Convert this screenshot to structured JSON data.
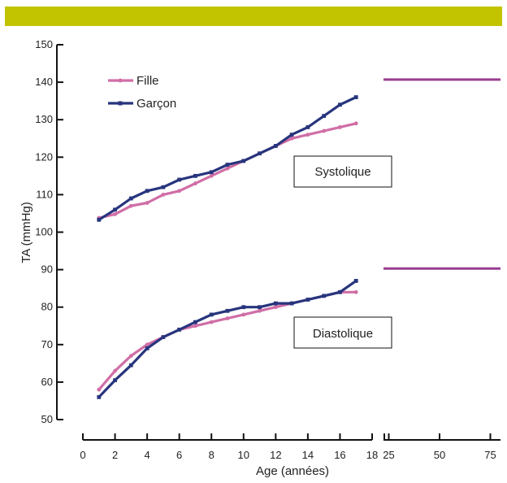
{
  "colors": {
    "top_bar": "#c2c400",
    "fille": "#d06ea6",
    "garcon": "#27357d",
    "reference_line": "#9a3d91",
    "axis": "#111111"
  },
  "chart_data": {
    "type": "line",
    "xlabel": "Age (années)",
    "ylabel": "TA (mmHg)",
    "ylim": [
      50,
      150
    ],
    "y_ticks": [
      50,
      60,
      70,
      80,
      90,
      100,
      110,
      120,
      130,
      140,
      150
    ],
    "x_ticks_child": [
      0,
      2,
      4,
      6,
      8,
      10,
      12,
      14,
      16,
      18
    ],
    "x_ticks_adult": [
      25,
      50,
      75
    ],
    "xlim_child": [
      0,
      18
    ],
    "xlim_adult": [
      20,
      80
    ],
    "legend": {
      "position": "top-left"
    },
    "annotations": [
      "Systolique",
      "Diastolique"
    ],
    "x": [
      1,
      2,
      3,
      4,
      5,
      6,
      7,
      8,
      9,
      10,
      11,
      12,
      13,
      14,
      15,
      16,
      17
    ],
    "series": [
      {
        "name": "Fille",
        "group": "Systolique",
        "color": "#d06ea6",
        "values": [
          103.8,
          104.8,
          107,
          107.8,
          110,
          111,
          113,
          115,
          117,
          119,
          121,
          123,
          125,
          126,
          127,
          128,
          129
        ]
      },
      {
        "name": "Garçon",
        "group": "Systolique",
        "color": "#27357d",
        "values": [
          103.3,
          106,
          109,
          111,
          112,
          114,
          115,
          116,
          118,
          119,
          121,
          123,
          126,
          128,
          131,
          134,
          136
        ]
      },
      {
        "name": "Fille",
        "group": "Diastolique",
        "color": "#d06ea6",
        "values": [
          58,
          63,
          67,
          70,
          72,
          74,
          75,
          76,
          77,
          78,
          79,
          80,
          81,
          82,
          83,
          84,
          84
        ]
      },
      {
        "name": "Garçon",
        "group": "Diastolique",
        "color": "#27357d",
        "values": [
          56,
          60.5,
          64.5,
          69,
          72,
          74,
          76,
          78,
          79,
          80,
          80,
          81,
          81,
          82,
          83,
          84,
          87
        ]
      }
    ],
    "reference_lines": [
      {
        "segment": "adult",
        "value": 140.7
      },
      {
        "segment": "adult",
        "value": 90.3
      }
    ]
  }
}
